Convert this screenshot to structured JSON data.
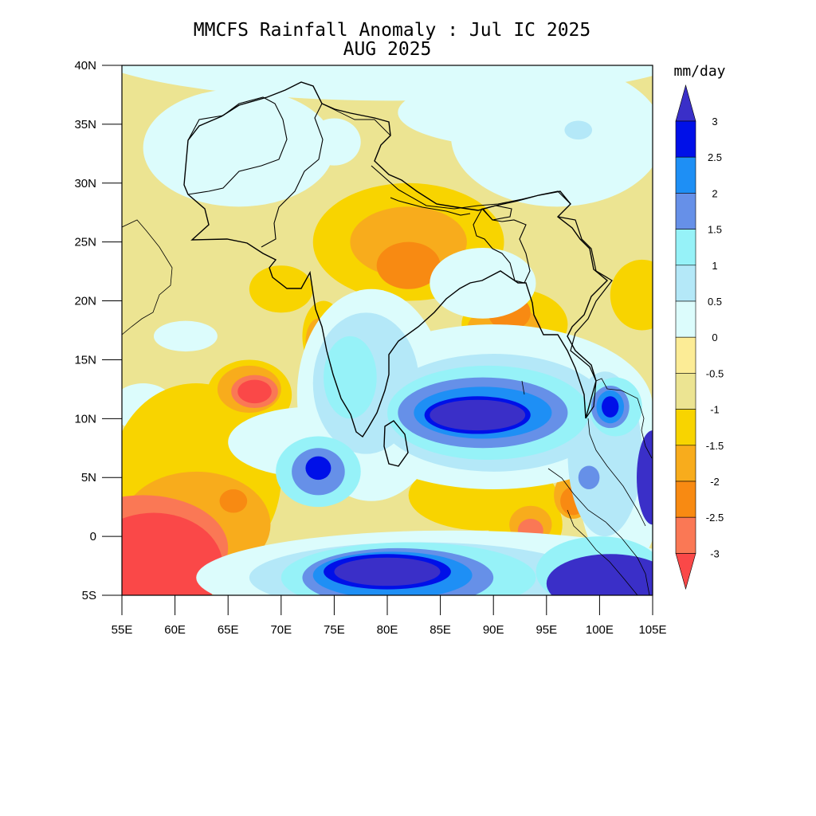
{
  "title": {
    "line1": "MMCFS Rainfall Anomaly : Jul IC 2025",
    "line2": "AUG 2025"
  },
  "map": {
    "lon_range": [
      55,
      105
    ],
    "lat_range": [
      -5,
      40
    ],
    "x_ticks": [
      {
        "value": 55,
        "label": "55E"
      },
      {
        "value": 60,
        "label": "60E"
      },
      {
        "value": 65,
        "label": "65E"
      },
      {
        "value": 70,
        "label": "70E"
      },
      {
        "value": 75,
        "label": "75E"
      },
      {
        "value": 80,
        "label": "80E"
      },
      {
        "value": 85,
        "label": "85E"
      },
      {
        "value": 90,
        "label": "90E"
      },
      {
        "value": 95,
        "label": "95E"
      },
      {
        "value": 100,
        "label": "100E"
      },
      {
        "value": 105,
        "label": "105E"
      }
    ],
    "y_ticks": [
      {
        "value": 40,
        "label": "40N"
      },
      {
        "value": 35,
        "label": "35N"
      },
      {
        "value": 30,
        "label": "30N"
      },
      {
        "value": 25,
        "label": "25N"
      },
      {
        "value": 20,
        "label": "20N"
      },
      {
        "value": 15,
        "label": "15N"
      },
      {
        "value": 10,
        "label": "10N"
      },
      {
        "value": 5,
        "label": "5N"
      },
      {
        "value": 0,
        "label": "0"
      },
      {
        "value": -5,
        "label": "5S"
      }
    ],
    "background_value": -0.75
  },
  "colorbar": {
    "unit_label": "mm/day",
    "levels": [
      "3",
      "2.5",
      "2",
      "1.5",
      "1",
      "0.5",
      "0",
      "-0.5",
      "-1",
      "-1.5",
      "-2",
      "-2.5",
      "-3"
    ],
    "colors_top_to_bottom": [
      "#3a2fc8",
      "#0010e8",
      "#1e8ff5",
      "#6690e8",
      "#96f2f8",
      "#b4e8f8",
      "#dcfcfc",
      "#fcec96",
      "#ece492",
      "#f8d400",
      "#f8ac1c",
      "#f88a12",
      "#fa7855",
      "#fa4848"
    ]
  },
  "chart_data": {
    "type": "heatmap",
    "title": "MMCFS Rainfall Anomaly : Jul IC 2025",
    "subtitle": "AUG 2025",
    "xlabel": "",
    "ylabel": "",
    "x_range": [
      55,
      105
    ],
    "y_range": [
      -5,
      40
    ],
    "value_unit": "mm/day",
    "legend_position": "right",
    "color_levels": [
      -3,
      -2.5,
      -2,
      -1.5,
      -1,
      -0.5,
      0,
      0.5,
      1,
      1.5,
      2,
      2.5,
      3
    ],
    "anomaly_regions": [
      {
        "lon": 80.5,
        "lat": 42,
        "rx": 30,
        "ry": 5,
        "value": 0.25
      },
      {
        "lon": 96,
        "lat": 34,
        "rx": 10,
        "ry": 6,
        "value": 0.25
      },
      {
        "lon": 93,
        "lat": 36,
        "rx": 12,
        "ry": 3,
        "value": 0.25
      },
      {
        "lon": 66,
        "lat": 33,
        "rx": 9,
        "ry": 5,
        "value": 0.25
      },
      {
        "lon": 75,
        "lat": 33.5,
        "rx": 2.5,
        "ry": 2,
        "value": 0.25
      },
      {
        "lon": 57,
        "lat": 11,
        "rx": 3,
        "ry": 2,
        "value": 0.25
      },
      {
        "lon": 61,
        "lat": 17,
        "rx": 3,
        "ry": 1.3,
        "value": 0.25
      },
      {
        "lon": 97,
        "lat": 12,
        "rx": 2.5,
        "ry": 5,
        "value": 0.25
      },
      {
        "lon": 98,
        "lat": 34.5,
        "rx": 1.3,
        "ry": 0.8,
        "value": 0.75
      },
      {
        "lon": 80,
        "lat": 19,
        "rx": 5,
        "ry": 3,
        "value": -0.75
      },
      {
        "lon": 71,
        "lat": 19,
        "rx": 6,
        "ry": 4,
        "value": -0.75
      },
      {
        "lon": 84,
        "lat": 6,
        "rx": 12,
        "ry": 6,
        "value": -0.75
      },
      {
        "lon": 82,
        "lat": 25,
        "rx": 9,
        "ry": 5,
        "value": -1.25
      },
      {
        "lon": 74,
        "lat": 17,
        "rx": 2,
        "ry": 3,
        "value": -1.25
      },
      {
        "lon": 70,
        "lat": 21,
        "rx": 3,
        "ry": 2,
        "value": -1.25
      },
      {
        "lon": 62,
        "lat": 5,
        "rx": 8,
        "ry": 8,
        "value": -1.25
      },
      {
        "lon": 67,
        "lat": 12,
        "rx": 4,
        "ry": 3,
        "value": -1.25
      },
      {
        "lon": 58,
        "lat": 0,
        "rx": 8,
        "ry": 4,
        "value": -1.25
      },
      {
        "lon": 89,
        "lat": 3.5,
        "rx": 7,
        "ry": 3,
        "value": -1.25
      },
      {
        "lon": 93,
        "lat": 1,
        "rx": 3.5,
        "ry": 3,
        "value": -1.25
      },
      {
        "lon": 92,
        "lat": 18,
        "rx": 5,
        "ry": 3,
        "value": -1.25
      },
      {
        "lon": 104,
        "lat": 20.5,
        "rx": 3,
        "ry": 3,
        "value": -1.25
      },
      {
        "lon": 82,
        "lat": 25,
        "rx": 5.5,
        "ry": 3,
        "value": -1.75
      },
      {
        "lon": 62,
        "lat": 1,
        "rx": 7,
        "ry": 4.5,
        "value": -1.75
      },
      {
        "lon": 91,
        "lat": 17.5,
        "rx": 3.5,
        "ry": 2.2,
        "value": -1.75
      },
      {
        "lon": 67,
        "lat": 12.5,
        "rx": 3,
        "ry": 2,
        "value": -1.75
      },
      {
        "lon": 73.5,
        "lat": 16.5,
        "rx": 1.2,
        "ry": 2,
        "value": -1.75
      },
      {
        "lon": 97.5,
        "lat": 3.5,
        "rx": 1.8,
        "ry": 2,
        "value": -1.75
      },
      {
        "lon": 93.5,
        "lat": 1,
        "rx": 2,
        "ry": 1.6,
        "value": -1.75
      },
      {
        "lon": 82,
        "lat": 23,
        "rx": 3,
        "ry": 2,
        "value": -2.25
      },
      {
        "lon": 91.5,
        "lat": 19,
        "rx": 2,
        "ry": 1.5,
        "value": -2.25
      },
      {
        "lon": 97.5,
        "lat": 3,
        "rx": 1.2,
        "ry": 1.2,
        "value": -2.25
      },
      {
        "lon": 65.5,
        "lat": 3,
        "rx": 1.3,
        "ry": 1,
        "value": -2.25
      },
      {
        "lon": 57,
        "lat": -1,
        "rx": 8,
        "ry": 4.5,
        "value": -2.75
      },
      {
        "lon": 67.5,
        "lat": 12.3,
        "rx": 2.2,
        "ry": 1.4,
        "value": -2.75
      },
      {
        "lon": 93.5,
        "lat": 0.5,
        "rx": 1.2,
        "ry": 1,
        "value": -2.75
      },
      {
        "lon": 58,
        "lat": -2.5,
        "rx": 6.5,
        "ry": 4.5,
        "value": -3.25
      },
      {
        "lon": 67.5,
        "lat": 12.3,
        "rx": 1.6,
        "ry": 1,
        "value": -3.25
      },
      {
        "lon": 78.5,
        "lat": 12,
        "rx": 7,
        "ry": 9,
        "value": 0.25
      },
      {
        "lon": 73,
        "lat": 8,
        "rx": 8,
        "ry": 3,
        "value": 0.25
      },
      {
        "lon": 90,
        "lat": 11,
        "rx": 15,
        "ry": 7,
        "value": 0.25
      },
      {
        "lon": 86,
        "lat": -3.5,
        "rx": 24,
        "ry": 4,
        "value": 0.25
      },
      {
        "lon": 89,
        "lat": 21.5,
        "rx": 5,
        "ry": 3,
        "value": 0.25
      },
      {
        "lon": 102,
        "lat": 5,
        "rx": 4,
        "ry": 8,
        "value": 0.25
      },
      {
        "lon": 78,
        "lat": 13,
        "rx": 5,
        "ry": 6,
        "value": 0.75
      },
      {
        "lon": 90,
        "lat": 10.5,
        "rx": 11,
        "ry": 5,
        "value": 0.75
      },
      {
        "lon": 83,
        "lat": -3.5,
        "rx": 16,
        "ry": 3,
        "value": 0.75
      },
      {
        "lon": 100.5,
        "lat": 7,
        "rx": 3.5,
        "ry": 7,
        "value": 0.75
      },
      {
        "lon": 76.5,
        "lat": 13.5,
        "rx": 2.5,
        "ry": 3.5,
        "value": 1.25
      },
      {
        "lon": 73.5,
        "lat": 5.5,
        "rx": 4,
        "ry": 3,
        "value": 1.25
      },
      {
        "lon": 89.5,
        "lat": 10.5,
        "rx": 9.5,
        "ry": 4,
        "value": 1.25
      },
      {
        "lon": 82,
        "lat": -3.5,
        "rx": 12,
        "ry": 3,
        "value": 1.25
      },
      {
        "lon": 100,
        "lat": -3,
        "rx": 6,
        "ry": 3,
        "value": 1.25
      },
      {
        "lon": 101.5,
        "lat": 11,
        "rx": 2.5,
        "ry": 2.5,
        "value": 1.25
      },
      {
        "lon": 89,
        "lat": 10.5,
        "rx": 8,
        "ry": 3,
        "value": 1.75
      },
      {
        "lon": 73.5,
        "lat": 5.5,
        "rx": 2.5,
        "ry": 2,
        "value": 1.75
      },
      {
        "lon": 81,
        "lat": -3.5,
        "rx": 9,
        "ry": 2.5,
        "value": 1.75
      },
      {
        "lon": 101,
        "lat": 11,
        "rx": 1.8,
        "ry": 1.8,
        "value": 1.75
      },
      {
        "lon": 99,
        "lat": 5,
        "rx": 1,
        "ry": 1,
        "value": 1.75
      },
      {
        "lon": 89,
        "lat": 10.5,
        "rx": 6.5,
        "ry": 2.2,
        "value": 2.25
      },
      {
        "lon": 80.5,
        "lat": -3.3,
        "rx": 7.5,
        "ry": 2,
        "value": 2.25
      },
      {
        "lon": 101,
        "lat": 11,
        "rx": 1.3,
        "ry": 1.4,
        "value": 2.25
      },
      {
        "lon": 88.5,
        "lat": 10.3,
        "rx": 5,
        "ry": 1.6,
        "value": 2.75
      },
      {
        "lon": 80,
        "lat": -3,
        "rx": 6,
        "ry": 1.5,
        "value": 2.75
      },
      {
        "lon": 73.5,
        "lat": 5.8,
        "rx": 1.2,
        "ry": 1,
        "value": 2.75
      },
      {
        "lon": 101,
        "lat": 11,
        "rx": 0.8,
        "ry": 0.9,
        "value": 2.75
      },
      {
        "lon": 88.5,
        "lat": 10.3,
        "rx": 4.5,
        "ry": 1.3,
        "value": 3.25
      },
      {
        "lon": 80,
        "lat": -3,
        "rx": 5,
        "ry": 1.2,
        "value": 3.25
      },
      {
        "lon": 101,
        "lat": -4,
        "rx": 6,
        "ry": 2.5,
        "value": 3.25
      },
      {
        "lon": 105,
        "lat": 5,
        "rx": 1.5,
        "ry": 4,
        "value": 3.25
      }
    ]
  }
}
